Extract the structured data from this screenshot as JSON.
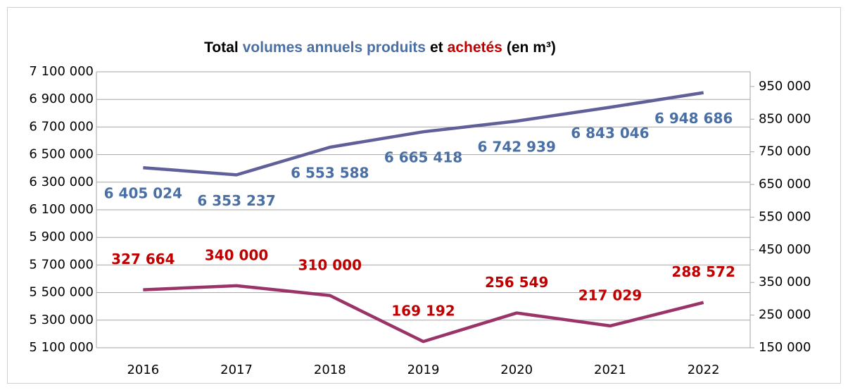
{
  "chart_data": {
    "type": "line",
    "title_parts": [
      "Total",
      "volumes annuels produits",
      "et",
      "achetés",
      "(en m³)"
    ],
    "categories": [
      "2016",
      "2017",
      "2018",
      "2019",
      "2020",
      "2021",
      "2022"
    ],
    "series": [
      {
        "name": "volumes annuels produits",
        "color": "#5f5f9a",
        "label_color": "#4a6fa5",
        "axis": "y",
        "values": [
          6405024,
          6353237,
          6553588,
          6665418,
          6742939,
          6843046,
          6948686
        ],
        "value_labels": [
          "6 405 024",
          "6 353 237",
          "6 553 588",
          "6 665 418",
          "6 742 939",
          "6 843 046",
          "6 948 686"
        ]
      },
      {
        "name": "achetés",
        "color": "#9a3468",
        "label_color": "#c00000",
        "axis": "y2",
        "values": [
          327664,
          340000,
          310000,
          169192,
          256549,
          217029,
          288572
        ],
        "value_labels": [
          "327 664",
          "340 000",
          "310 000",
          "169 192",
          "256 549",
          "217 029",
          "288 572"
        ]
      }
    ],
    "ylim": [
      5100000,
      7100000
    ],
    "yticks": [
      {
        "value": 5100000,
        "label": "5 100 000"
      },
      {
        "value": 5300000,
        "label": "5 300 000"
      },
      {
        "value": 5500000,
        "label": "5 500 000"
      },
      {
        "value": 5700000,
        "label": "5 700 000"
      },
      {
        "value": 5900000,
        "label": "5 900 000"
      },
      {
        "value": 6100000,
        "label": "6 100 000"
      },
      {
        "value": 6300000,
        "label": "6 300 000"
      },
      {
        "value": 6500000,
        "label": "6 500 000"
      },
      {
        "value": 6700000,
        "label": "6 700 000"
      },
      {
        "value": 6900000,
        "label": "6 900 000"
      },
      {
        "value": 7100000,
        "label": "7 100 000"
      }
    ],
    "y2lim": [
      150000,
      995000
    ],
    "y2ticks": [
      {
        "value": 150000,
        "label": "150 000"
      },
      {
        "value": 250000,
        "label": "250 000"
      },
      {
        "value": 350000,
        "label": "350 000"
      },
      {
        "value": 450000,
        "label": "450 000"
      },
      {
        "value": 550000,
        "label": "550 000"
      },
      {
        "value": 650000,
        "label": "650 000"
      },
      {
        "value": 750000,
        "label": "750 000"
      },
      {
        "value": 850000,
        "label": "850 000"
      },
      {
        "value": 950000,
        "label": "950 000"
      }
    ],
    "grid": true
  }
}
